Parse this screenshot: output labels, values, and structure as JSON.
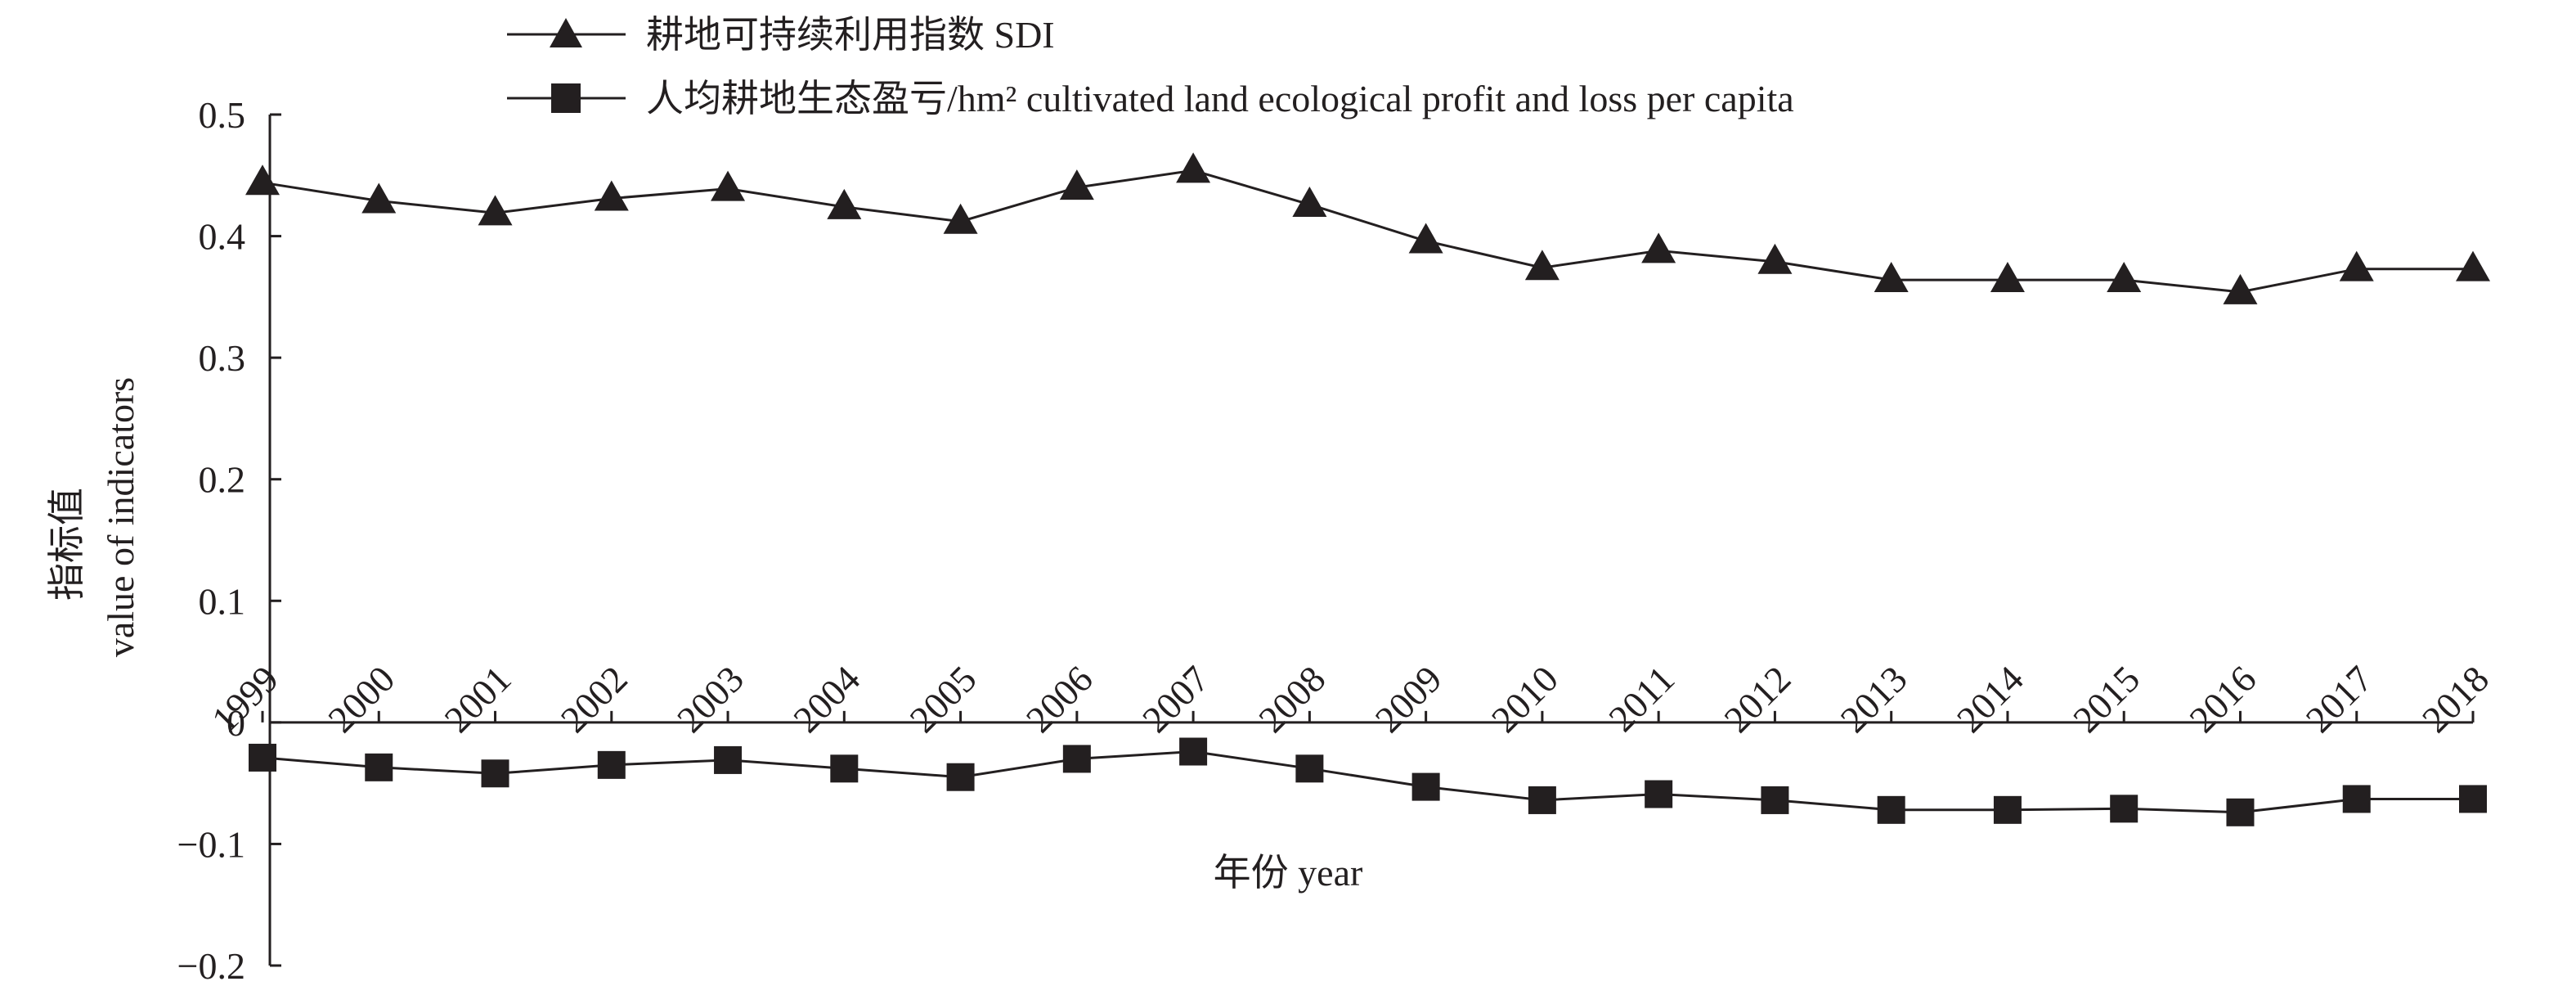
{
  "chart_data": {
    "type": "line",
    "title": "",
    "categories": [
      "1999",
      "2000",
      "2001",
      "2002",
      "2003",
      "2004",
      "2005",
      "2006",
      "2007",
      "2008",
      "2009",
      "2010",
      "2011",
      "2012",
      "2013",
      "2014",
      "2015",
      "2016",
      "2017",
      "2018"
    ],
    "series": [
      {
        "name": "耕地可持续利用指数 SDI",
        "marker": "triangle",
        "values": [
          0.444,
          0.429,
          0.419,
          0.431,
          0.439,
          0.424,
          0.412,
          0.44,
          0.454,
          0.426,
          0.396,
          0.374,
          0.388,
          0.379,
          0.364,
          0.364,
          0.364,
          0.354,
          0.373,
          0.373
        ]
      },
      {
        "name": "人均耕地生态盈亏/hm² cultivated land ecological profit and loss per capita",
        "marker": "square",
        "values": [
          -0.029,
          -0.037,
          -0.042,
          -0.035,
          -0.031,
          -0.038,
          -0.045,
          -0.03,
          -0.024,
          -0.038,
          -0.053,
          -0.064,
          -0.059,
          -0.064,
          -0.072,
          -0.072,
          -0.071,
          -0.074,
          -0.063,
          -0.063
        ]
      }
    ],
    "ylim": [
      -0.2,
      0.5
    ],
    "yticks": [
      -0.2,
      -0.1,
      0,
      0.1,
      0.2,
      0.3,
      0.4,
      0.5
    ],
    "ytick_labels": [
      "−0.2",
      "−0.1",
      "0",
      "0.1",
      "0.2",
      "0.3",
      "0.4",
      "0.5"
    ],
    "ylabel_cn": "指标值",
    "ylabel_en": "value of indicators",
    "xlabel": "年份 year",
    "legend_position": "top",
    "colors": {
      "line": "#231f20",
      "marker": "#231f20",
      "axis": "#231f20",
      "background": "#ffffff"
    }
  }
}
